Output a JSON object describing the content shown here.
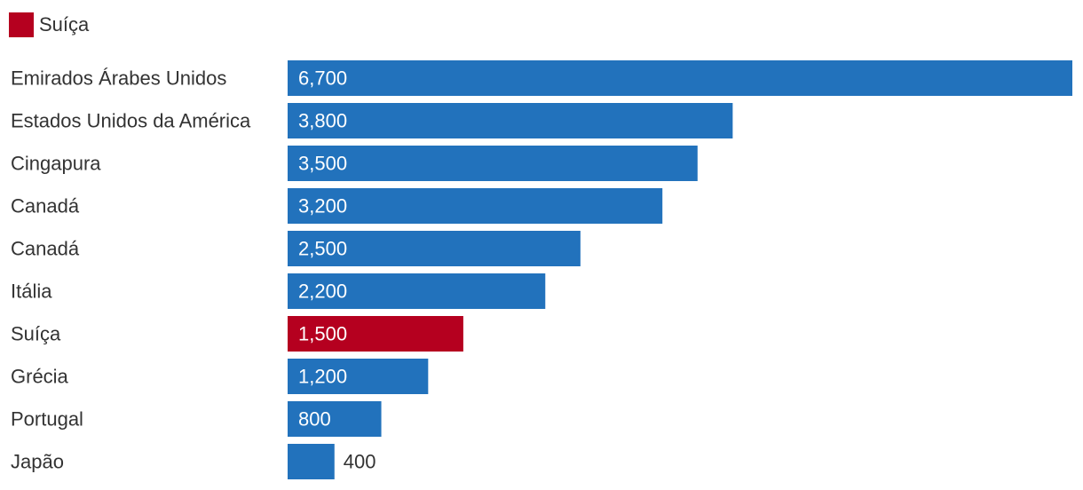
{
  "legend": {
    "label": "Suíça",
    "color": "#b5001f"
  },
  "chart_data": {
    "type": "bar",
    "orientation": "horizontal",
    "categories": [
      "Emirados Árabes Unidos",
      "Estados Unidos da América",
      "Cingapura",
      "Canadá",
      "Canadá",
      "Itália",
      "Suíça",
      "Grécia",
      "Portugal",
      "Japão"
    ],
    "values": [
      6700,
      3800,
      3500,
      3200,
      2500,
      2200,
      1500,
      1200,
      800,
      400
    ],
    "value_labels": [
      "6,700",
      "3,800",
      "3,500",
      "3,200",
      "2,500",
      "2,200",
      "1,500",
      "1,200",
      "800",
      "400"
    ],
    "highlight": "Suíça",
    "colors": {
      "default": "#2272bc",
      "highlight": "#b5001f",
      "label_inside": "#ffffff",
      "label_outside": "#333333",
      "category_text": "#333333"
    },
    "xlim": [
      0,
      6700
    ],
    "grid": false,
    "legend_position": "top-left"
  }
}
